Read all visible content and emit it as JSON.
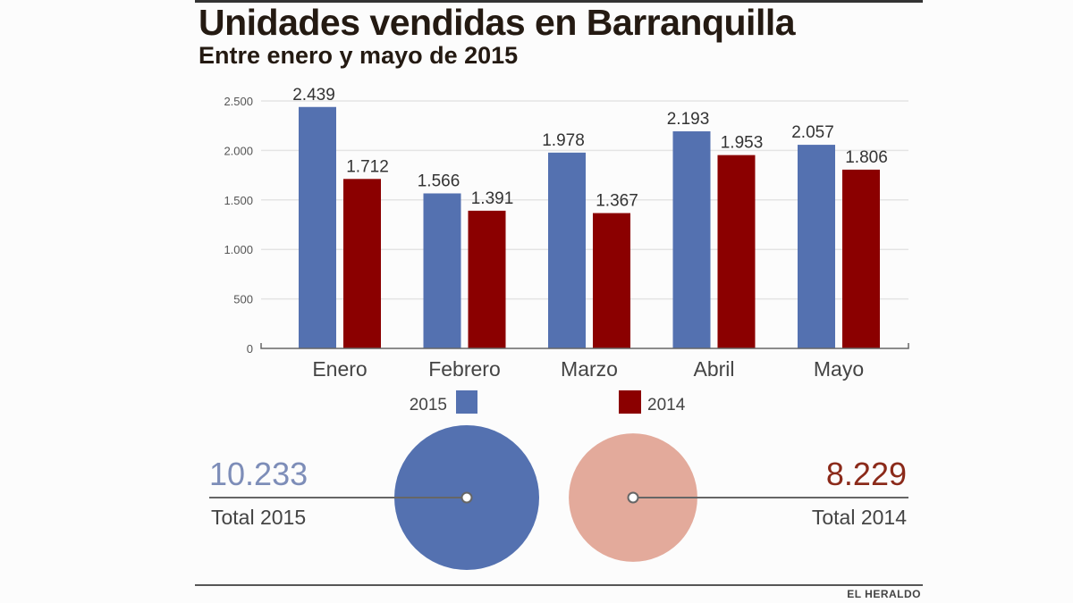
{
  "header": {
    "title": "Unidades vendidas en Barranquilla",
    "subtitle": "Entre enero y mayo de 2015"
  },
  "colors": {
    "series_2015": "#5471b0",
    "series_2014": "#8b0000",
    "circle_2014": "#e3aa9b",
    "total_2015_text": "#7d8db8",
    "total_2014_text": "#8b2a1a"
  },
  "chart_data": {
    "type": "bar",
    "title": "Unidades vendidas en Barranquilla",
    "subtitle": "Entre enero y mayo de 2015",
    "categories": [
      "Enero",
      "Febrero",
      "Marzo",
      "Abril",
      "Mayo"
    ],
    "series": [
      {
        "name": "2015",
        "values": [
          2439,
          1566,
          1978,
          2193,
          2057
        ],
        "labels": [
          "2.439",
          "1.566",
          "1.978",
          "2.193",
          "2.057"
        ]
      },
      {
        "name": "2014",
        "values": [
          1712,
          1391,
          1367,
          1953,
          1806
        ],
        "labels": [
          "1.712",
          "1.391",
          "1.367",
          "1.953",
          "1.806"
        ]
      }
    ],
    "yticks": [
      0,
      500,
      1000,
      1500,
      2000,
      2500
    ],
    "ytick_labels": [
      "0",
      "500",
      "1.000",
      "1.500",
      "2.000",
      "2.500"
    ],
    "ylim": [
      0,
      2500
    ],
    "xlabel": "",
    "ylabel": "",
    "grid": true,
    "legend": [
      "2015",
      "2014"
    ],
    "legend_placement": "bottom-center",
    "totals": {
      "total_2015": {
        "value": 10233,
        "label": "10.233",
        "caption": "Total 2015"
      },
      "total_2014": {
        "value": 8229,
        "label": "8.229",
        "caption": "Total 2014"
      }
    }
  },
  "footer": {
    "source": "EL HERALDO"
  }
}
